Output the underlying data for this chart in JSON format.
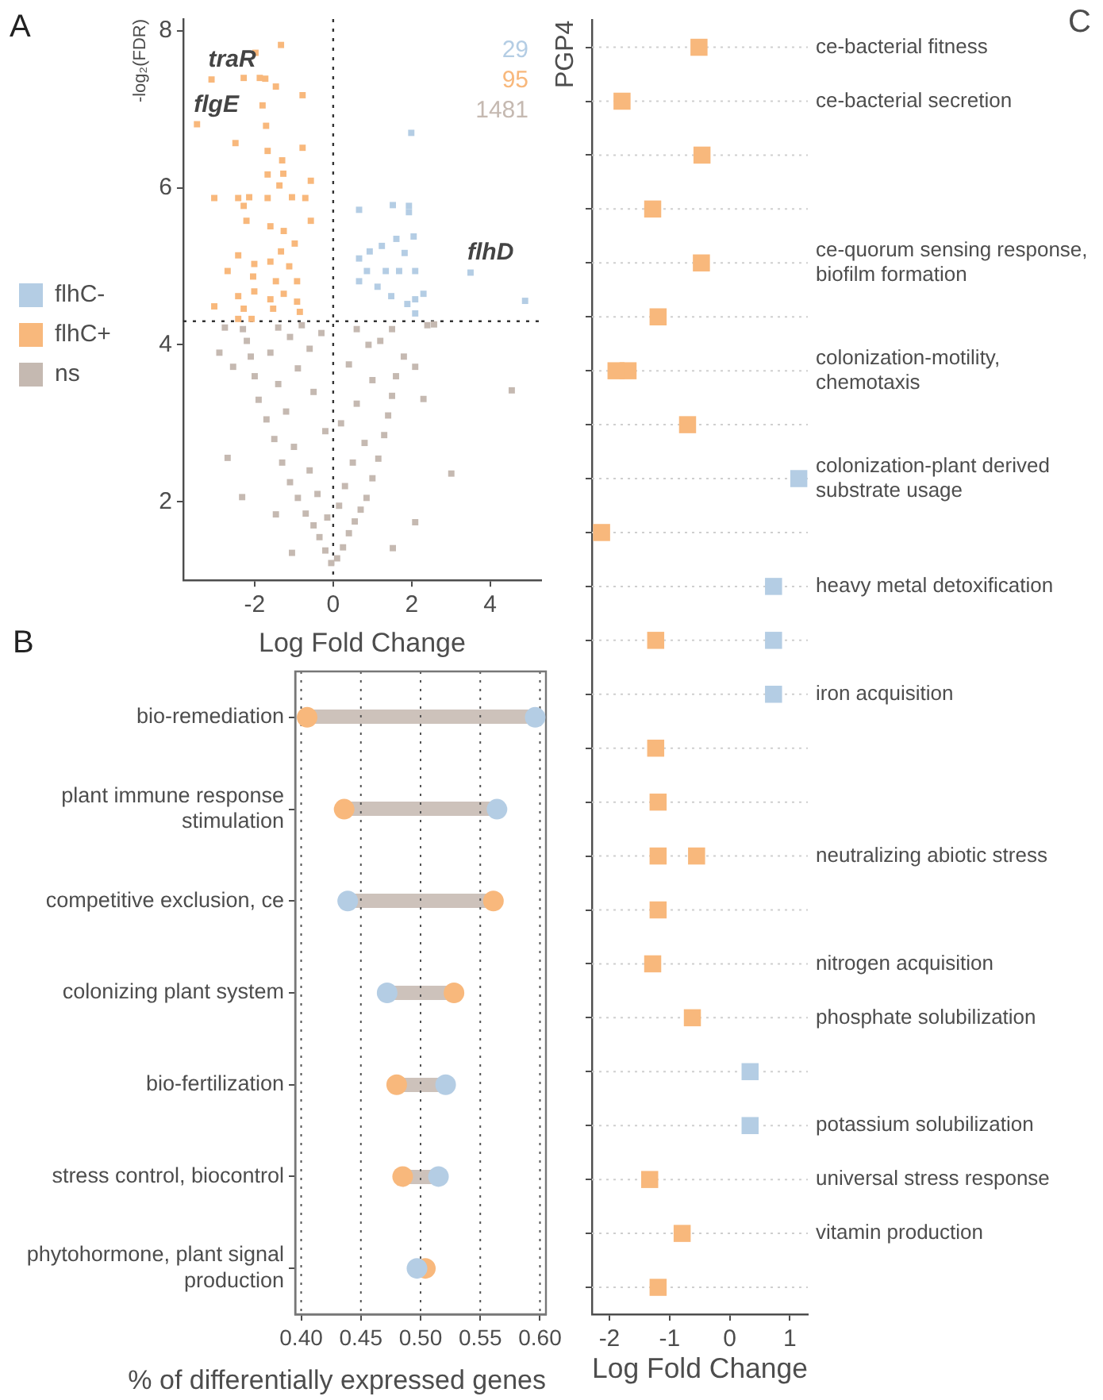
{
  "chart_data": [
    {
      "type": "scatter",
      "title": "A",
      "xlabel": "Log Fold Change",
      "ylabel": "-log₂(FDR)",
      "xlim": [
        -3.82,
        5.3
      ],
      "ylim": [
        1,
        8.15
      ],
      "xticks": [
        -2,
        0,
        2,
        4
      ],
      "yticks": [
        2,
        4,
        6,
        8
      ],
      "marker": "square",
      "legend": "left",
      "series": [
        {
          "name": "flhC-",
          "color": "#b4cde4",
          "x": [
            0.66,
            1.52,
            1.93,
            1.93,
            2.05,
            1.61,
            1.82,
            1.24,
            0.93,
            0.66,
            0.86,
            0.66,
            1.34,
            1.68,
            2.09,
            1.13,
            1.48,
            1.89,
            2.09,
            2.3,
            2.09,
            3.5,
            4.89,
            1.99
          ],
          "values": [
            5.72,
            5.78,
            5.77,
            5.69,
            5.38,
            5.35,
            5.17,
            5.26,
            5.19,
            5.1,
            4.94,
            4.81,
            4.94,
            4.94,
            4.94,
            4.74,
            4.62,
            4.52,
            4.58,
            4.65,
            4.4,
            4.92,
            4.56,
            6.7
          ]
        },
        {
          "name": "flhC+",
          "color": "#f8b87c",
          "x": [
            -3.1,
            -3.47,
            -1.98,
            -1.33,
            -2.28,
            -1.87,
            -1.73,
            -1.46,
            -0.78,
            -1.8,
            -1.71,
            -2.49,
            -1.67,
            -1.3,
            -0.78,
            -1.67,
            -1.27,
            -0.57,
            -3.03,
            -2.42,
            -2.14,
            -2.28,
            -1.67,
            -1.37,
            -1.05,
            -0.71,
            -0.57,
            -2.21,
            -1.6,
            -1.26,
            -0.98,
            -1.33,
            -2.42,
            -2.69,
            -2.01,
            -1.6,
            -1.12,
            -2.04,
            -1.46,
            -0.92,
            -1.26,
            -2.01,
            -2.42,
            -1.6,
            -0.92,
            -3.03,
            -2.28,
            -1.53,
            -0.85,
            -2.42,
            -2.08
          ],
          "values": [
            7.38,
            6.81,
            7.72,
            7.82,
            7.4,
            7.4,
            7.39,
            7.29,
            7.18,
            7.05,
            6.79,
            6.57,
            6.47,
            6.35,
            6.51,
            6.17,
            6.18,
            6.09,
            5.87,
            5.87,
            5.88,
            5.77,
            5.87,
            6.03,
            5.88,
            5.87,
            5.58,
            5.58,
            5.51,
            5.45,
            5.29,
            5.19,
            5.14,
            4.94,
            5.03,
            5.06,
            5.0,
            4.87,
            4.81,
            4.81,
            4.65,
            4.68,
            4.62,
            4.58,
            4.55,
            4.49,
            4.46,
            4.46,
            4.42,
            4.33,
            4.33
          ]
        },
        {
          "name": "ns",
          "color": "#c5b9b1",
          "x": [
            -0.05,
            0.1,
            -0.2,
            0.25,
            -0.35,
            0.4,
            -0.5,
            0.55,
            -0.7,
            0.7,
            -0.15,
            0.15,
            -0.9,
            0.85,
            -0.4,
            0.3,
            -1.1,
            1.0,
            -0.6,
            0.5,
            -1.3,
            1.15,
            -1.0,
            0.8,
            -1.5,
            1.3,
            -0.2,
            0.2,
            -1.7,
            1.4,
            -1.2,
            0.6,
            -1.9,
            1.5,
            -0.5,
            -1.4,
            1.0,
            -2.0,
            1.6,
            -0.9,
            0.4,
            -2.1,
            1.8,
            -1.6,
            -0.6,
            0.9,
            -2.2,
            1.2,
            -1.1,
            -0.3,
            1.5,
            -1.4,
            -0.8,
            0.6,
            -2.3,
            -2.69,
            -2.32,
            -1.46,
            3.01,
            4.55,
            2.09,
            -2.76,
            -2.55,
            2.3,
            2.09,
            2.57,
            1.52,
            -1.05,
            -2.9,
            2.4
          ],
          "values": [
            1.22,
            1.28,
            1.38,
            1.42,
            1.55,
            1.6,
            1.7,
            1.75,
            1.85,
            1.9,
            1.8,
            1.95,
            2.05,
            2.05,
            2.1,
            2.2,
            2.25,
            2.3,
            2.4,
            2.5,
            2.5,
            2.55,
            2.7,
            2.75,
            2.8,
            2.85,
            2.9,
            3.0,
            3.05,
            3.1,
            3.15,
            3.25,
            3.3,
            3.35,
            3.4,
            3.5,
            3.55,
            3.6,
            3.6,
            3.7,
            3.75,
            3.85,
            3.85,
            3.9,
            3.95,
            4.0,
            4.05,
            4.05,
            4.1,
            4.15,
            4.2,
            4.22,
            4.25,
            4.2,
            4.2,
            2.56,
            2.06,
            1.84,
            2.36,
            3.42,
            1.74,
            4.22,
            3.72,
            3.31,
            3.72,
            4.26,
            1.41,
            1.35,
            3.9,
            4.25
          ]
        }
      ],
      "ref_lines": [
        {
          "axis": "x",
          "value": 0,
          "line_style": "dotted"
        },
        {
          "axis": "y",
          "value": 4.3,
          "line_style": "dotted"
        }
      ],
      "annotations": [
        "29",
        "95",
        "1481",
        {
          "text": "traR",
          "x": -3.1,
          "y": 7.38
        },
        {
          "text": "flgE",
          "x": -3.47,
          "y": 6.81
        },
        {
          "text": "flhD",
          "x": 3.5,
          "y": 4.92
        }
      ]
    },
    {
      "type": "scatter",
      "title": "B",
      "orientation": "horizontal",
      "xlabel": "% of differentially expressed genes",
      "categories": [
        "bio-remediation",
        "plant immune response stimulation",
        "competitive exclusion, ce",
        "colonizing plant system",
        "bio-fertilization",
        "stress control, biocontrol",
        "phytohormone, plant signal production"
      ],
      "xlim": [
        0.395,
        0.605
      ],
      "xticks": [
        {
          "value": 0.4,
          "label": "0.40"
        },
        0.45,
        {
          "value": 0.5,
          "label": "0.50"
        },
        0.55,
        {
          "value": 0.6,
          "label": "0.60"
        }
      ],
      "grid": "x",
      "marker": "circle",
      "series": [
        {
          "color": "#b4cde4",
          "values": [
            0.596,
            0.564,
            0.439,
            0.472,
            0.521,
            0.515,
            0.497
          ]
        },
        {
          "color": "#f8b87c",
          "values": [
            0.405,
            0.436,
            0.561,
            0.528,
            0.48,
            0.485,
            0.504
          ]
        }
      ]
    },
    {
      "type": "scatter",
      "orientation": "horizontal",
      "ylabel": "PGP4",
      "xlabel": "Log Fold Change",
      "annotations": [
        "C"
      ],
      "categories": [
        "ce-bacterial fitness",
        "ce-bacterial secretion",
        null,
        null,
        "ce-quorum sensing response, biofilm formation",
        null,
        "colonization-motility, chemotaxis",
        null,
        "colonization-plant derived substrate usage",
        null,
        "heavy metal detoxification",
        null,
        "iron acquisition",
        null,
        null,
        "neutralizing abiotic stress",
        null,
        "nitrogen acquisition",
        "phosphate solubilization",
        null,
        "potassium solubilization",
        "universal stress response",
        "vitamin production",
        null
      ],
      "series": [
        {
          "color": "#f8b87c",
          "values": [
            -0.51,
            -1.79,
            -0.46,
            -1.28,
            -0.47,
            -1.19,
            -1.89,
            -0.7,
            null,
            -2.13,
            null,
            -1.23,
            null,
            -1.23,
            -1.19,
            -1.19,
            -1.19,
            -1.28,
            -0.62,
            null,
            null,
            -1.33,
            -0.79,
            -1.19
          ]
        },
        {
          "color": "#f8b87c",
          "values": [
            null,
            null,
            null,
            null,
            null,
            null,
            -1.69,
            null,
            null,
            null,
            null,
            null,
            null,
            null,
            null,
            -0.55,
            null,
            null,
            null,
            null,
            null,
            null,
            null,
            null
          ]
        },
        {
          "color": "#b4cde4",
          "values": [
            null,
            null,
            null,
            null,
            null,
            null,
            null,
            null,
            1.15,
            null,
            0.73,
            0.73,
            0.73,
            null,
            null,
            null,
            null,
            null,
            null,
            0.34,
            0.34,
            null,
            null,
            null
          ]
        }
      ],
      "xlim": [
        -2.29,
        1.3
      ],
      "xticks": [
        -2,
        -1,
        0,
        1
      ],
      "grid": "y",
      "marker": "square"
    }
  ]
}
